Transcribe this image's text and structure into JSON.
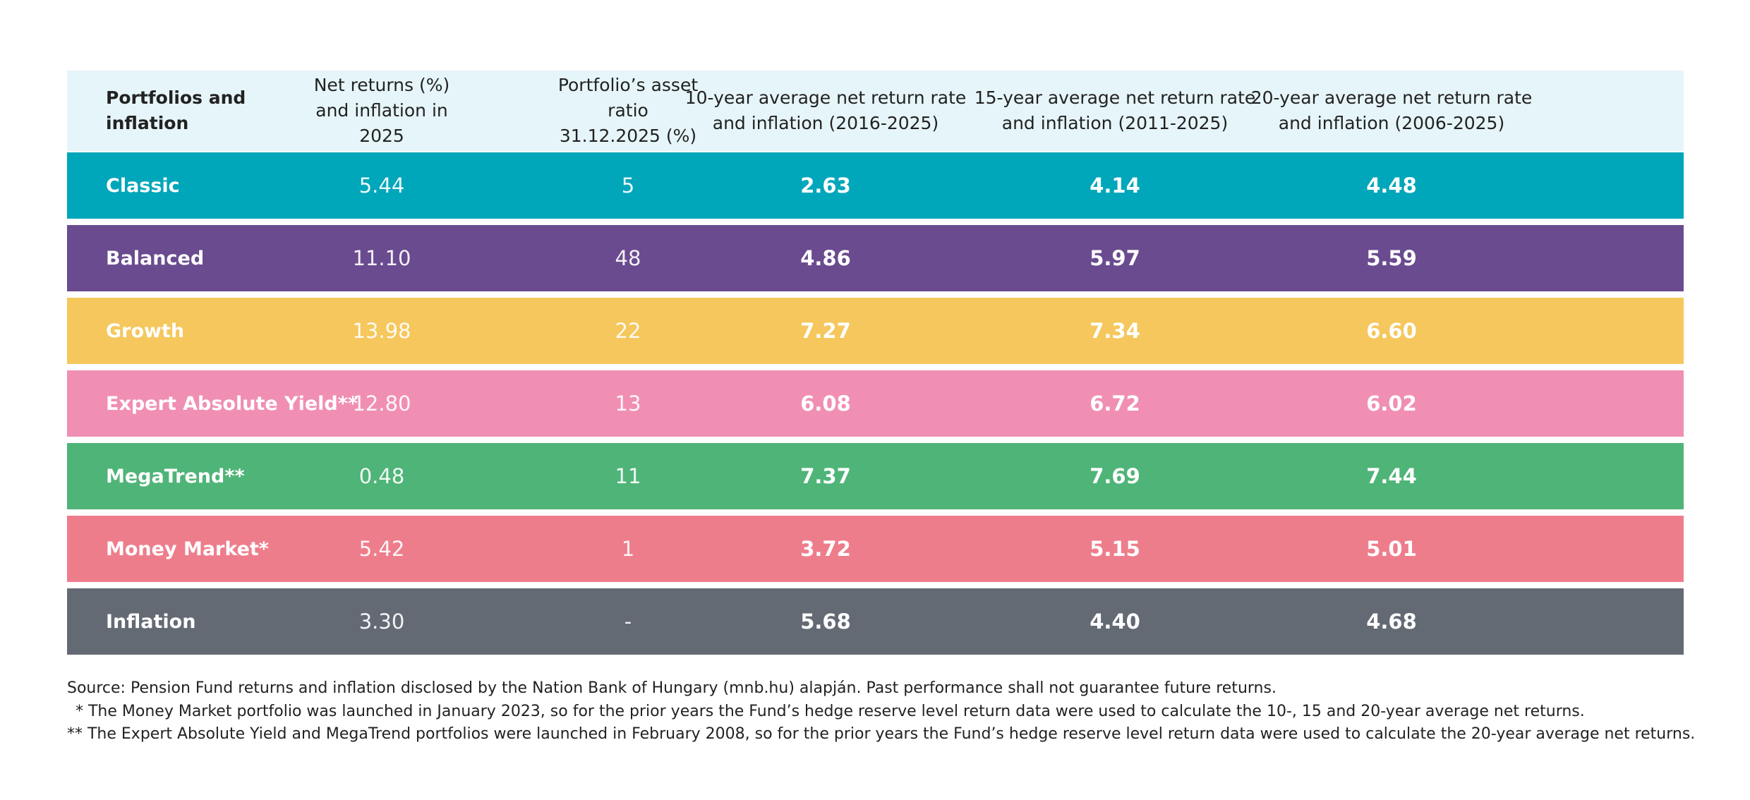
{
  "table": {
    "header": [
      "Portfolios and inflation",
      "Net returns (%) and inflation in 2025",
      "Portfolio’s asset ratio 31.12.2025 (%)",
      "10-year average net return rate and inflation (2016-2025)",
      "15-year average net return rate and inflation (2011-2025)",
      "20-year average net return rate and inflation (2006-2025)"
    ],
    "rows": [
      {
        "cells": [
          "Classic",
          "5.44",
          "5",
          "2.63",
          "4.14",
          "4.48"
        ],
        "color": "#00a6ba"
      },
      {
        "cells": [
          "Balanced",
          "11.10",
          "48",
          "4.86",
          "5.97",
          "5.59"
        ],
        "color": "#6a4b8f"
      },
      {
        "cells": [
          "Growth",
          "13.98",
          "22",
          "7.27",
          "7.34",
          "6.60"
        ],
        "color": "#f5c75c"
      },
      {
        "cells": [
          "Expert Absolute Yield**",
          "12.80",
          "13",
          "6.08",
          "6.72",
          "6.02"
        ],
        "color": "#f08fb3"
      },
      {
        "cells": [
          "MegaTrend**",
          "0.48",
          "11",
          "7.37",
          "7.69",
          "7.44"
        ],
        "color": "#4fb477"
      },
      {
        "cells": [
          "Money Market*",
          "5.42",
          "1",
          "3.72",
          "5.15",
          "5.01"
        ],
        "color": "#ee7d8c"
      },
      {
        "cells": [
          "Inflation",
          "3.30",
          "-",
          "5.68",
          "4.40",
          "4.68"
        ],
        "color": "#646a74"
      }
    ]
  },
  "footnotes": [
    "Source: Pension Fund returns and inflation disclosed by the Nation Bank of Hungary (mnb.hu) alapján. Past performance shall not guarantee future returns.",
    "* The Money Market portfolio was launched in January 2023, so for the prior years the Fund’s hedge reserve level return data were used to calculate the 10-, 15 and 20-year average net returns.",
    "** The Expert Absolute Yield and MegaTrend portfolios were launched in February 2008, so for the prior years the Fund’s hedge reserve level return data were used to calculate the 20-year average net returns."
  ]
}
